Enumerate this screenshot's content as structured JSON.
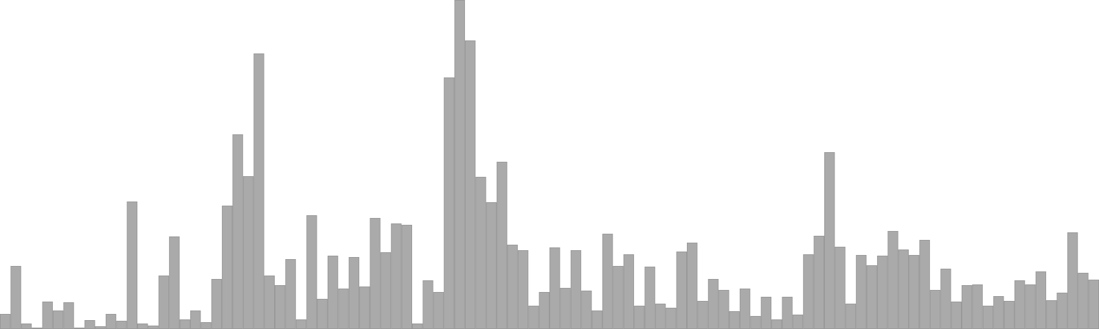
{
  "chart_data": {
    "type": "bar",
    "title": "",
    "xlabel": "",
    "ylabel": "",
    "ylim": [
      0,
      480
    ],
    "grid": false,
    "legend": "none",
    "bar_color": "#aaaaaa",
    "values": [
      22,
      92,
      8,
      2,
      40,
      27,
      39,
      2,
      13,
      4,
      22,
      12,
      186,
      8,
      5,
      78,
      135,
      14,
      27,
      10,
      73,
      180,
      284,
      223,
      402,
      78,
      64,
      102,
      14,
      166,
      44,
      107,
      59,
      105,
      62,
      162,
      112,
      154,
      152,
      8,
      71,
      54,
      367,
      480,
      421,
      222,
      185,
      244,
      123,
      115,
      34,
      54,
      119,
      60,
      115,
      56,
      27,
      139,
      92,
      109,
      34,
      91,
      37,
      31,
      113,
      126,
      41,
      73,
      57,
      26,
      59,
      19,
      47,
      14,
      47,
      21,
      109,
      136,
      258,
      120,
      37,
      108,
      93,
      107,
      143,
      116,
      108,
      130,
      57,
      88,
      40,
      64,
      65,
      34,
      48,
      41,
      71,
      65,
      84,
      42,
      53,
      141,
      82,
      72
    ]
  }
}
